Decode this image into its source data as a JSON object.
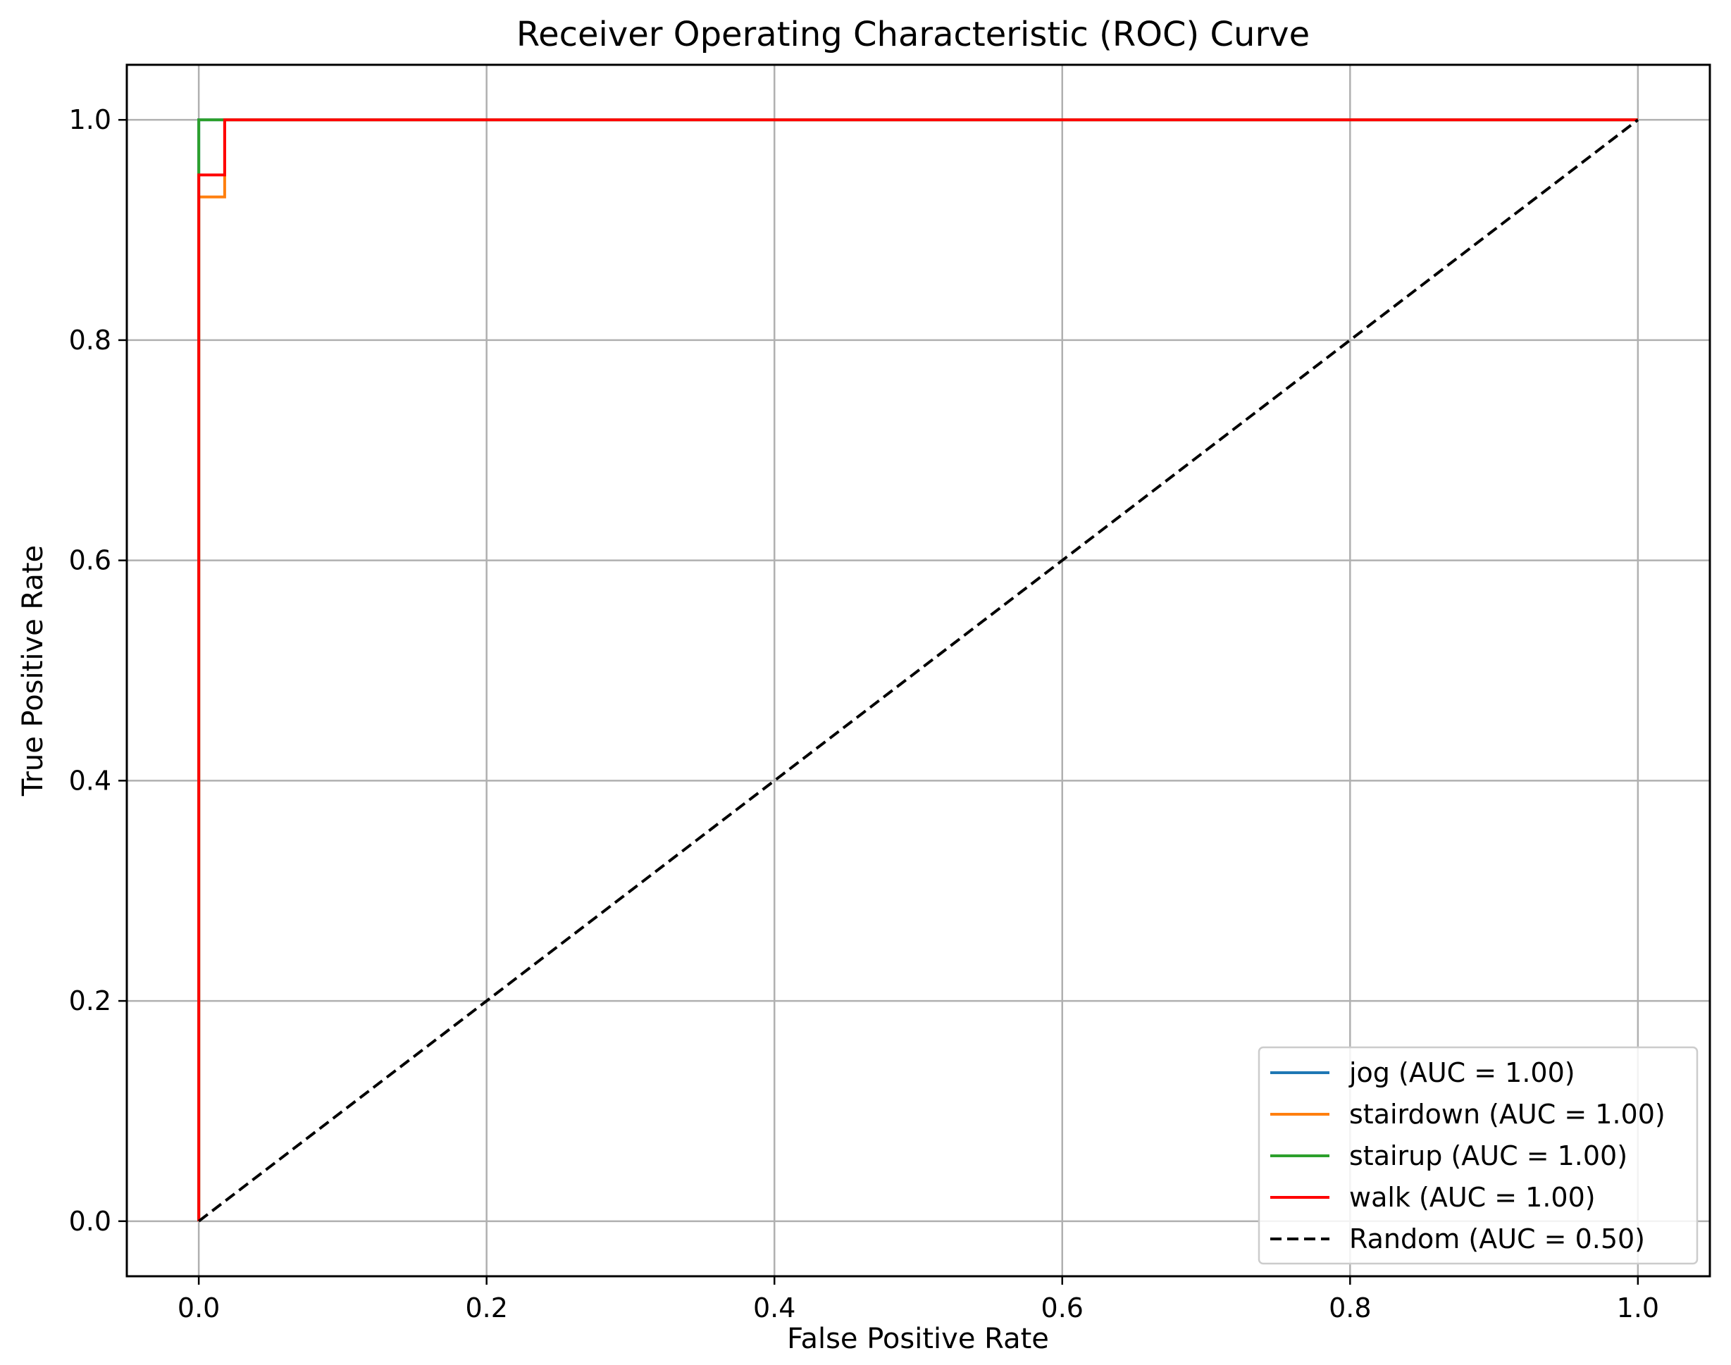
{
  "chart_data": {
    "type": "line",
    "title": "Receiver Operating Characteristic (ROC) Curve",
    "xlabel": "False Positive Rate",
    "ylabel": "True Positive Rate",
    "xlim": [
      -0.05,
      1.05
    ],
    "ylim": [
      -0.05,
      1.05
    ],
    "xticks": [
      0.0,
      0.2,
      0.4,
      0.6,
      0.8,
      1.0
    ],
    "xtick_labels": [
      "0.0",
      "0.2",
      "0.4",
      "0.6",
      "0.8",
      "1.0"
    ],
    "yticks": [
      0.0,
      0.2,
      0.4,
      0.6,
      0.8,
      1.0
    ],
    "ytick_labels": [
      "0.0",
      "0.2",
      "0.4",
      "0.6",
      "0.8",
      "1.0"
    ],
    "grid": true,
    "legend_position": "lower-right",
    "series": [
      {
        "name": "jog (AUC = 1.00)",
        "color": "#1f77b4",
        "style": "solid",
        "x": [
          0.0,
          0.0,
          0.0,
          1.0
        ],
        "y": [
          0.0,
          0.0,
          1.0,
          1.0
        ]
      },
      {
        "name": "stairdown (AUC = 1.00)",
        "color": "#ff7f0e",
        "style": "solid",
        "x": [
          0.0,
          0.0,
          0.018,
          0.018,
          1.0
        ],
        "y": [
          0.0,
          0.93,
          0.93,
          1.0,
          1.0
        ]
      },
      {
        "name": "stairup (AUC = 1.00)",
        "color": "#2ca02c",
        "style": "solid",
        "x": [
          0.0,
          0.0,
          1.0
        ],
        "y": [
          0.0,
          1.0,
          1.0
        ]
      },
      {
        "name": "walk (AUC = 1.00)",
        "color": "#ff0000",
        "style": "solid",
        "x": [
          0.0,
          0.0,
          0.018,
          0.018,
          1.0
        ],
        "y": [
          0.0,
          0.95,
          0.95,
          1.0,
          1.0
        ]
      },
      {
        "name": "Random (AUC = 0.50)",
        "color": "#000000",
        "style": "dashed",
        "x": [
          0.0,
          1.0
        ],
        "y": [
          0.0,
          1.0
        ]
      }
    ]
  }
}
